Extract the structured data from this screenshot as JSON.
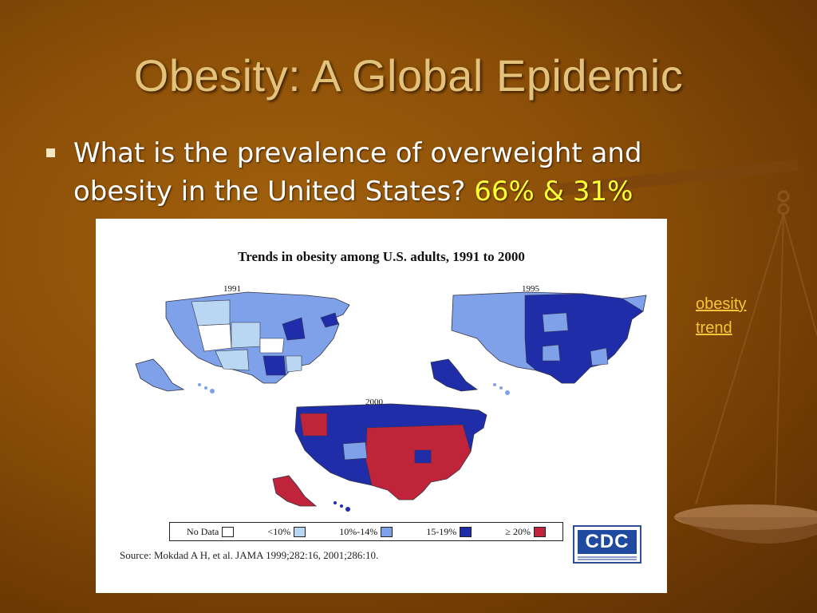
{
  "slide": {
    "title": "Obesity: A Global Epidemic",
    "bullet_text": "What is the prevalence of overweight and obesity in the United States?",
    "bullet_highlight": "66% & 31%",
    "side_link": "obesity trend"
  },
  "figure": {
    "title": "Trends in obesity among U.S. adults, 1991 to 2000",
    "map_labels": [
      "1991",
      "1995",
      "2000"
    ],
    "legend": [
      {
        "label": "No Data",
        "color": "#ffffff"
      },
      {
        "label": "<10%",
        "color": "#b9d6f2"
      },
      {
        "label": "10%-14%",
        "color": "#7ea1ea"
      },
      {
        "label": "15-19%",
        "color": "#1f2ea8"
      },
      {
        "label": "≥ 20%",
        "color": "#c0243a"
      }
    ],
    "source": "Source: Mokdad A H, et al. JAMA 1999;282:16, 2001;286:10.",
    "logo": "CDC"
  },
  "colors": {
    "title": "#e3c27c",
    "link": "#f5c53a",
    "highlight": "#ffff33"
  }
}
